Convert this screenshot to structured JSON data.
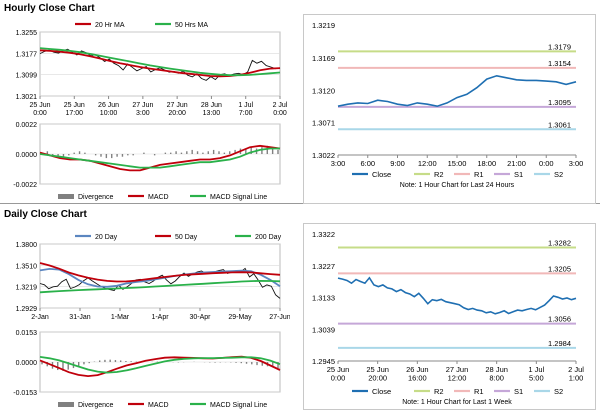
{
  "sections": {
    "hourly_title": "Hourly Close Chart",
    "daily_title": "Daily Close Chart"
  },
  "colors": {
    "price": "#111111",
    "ma_red": "#c0000b",
    "ma_green": "#2ab14a",
    "ma_blue": "#5b86c0",
    "hist": "#808080",
    "close_blue": "#1f6fb2",
    "r2": "#c6dc88",
    "r1": "#f1b8b8",
    "s1": "#c5a7d8",
    "s2": "#a9d7e8",
    "grid": "#d9d9d9"
  },
  "chart_data": [
    {
      "id": "hourly_price",
      "type": "line",
      "title": "Hourly Close Chart",
      "legend": [
        "20 Hr MA",
        "50 Hrs MA"
      ],
      "ylim": [
        1.3021,
        1.3255
      ],
      "yticks": [
        "1.3255",
        "1.3177",
        "1.3099",
        "1.3021"
      ],
      "ytick_values": [
        1.3255,
        1.3177,
        1.3099,
        1.3021
      ],
      "xticks": [
        "25 Jun\n0:00",
        "25 Jun\n17:00",
        "26 Jun\n10:00",
        "27 Jun\n3:00",
        "27 Jun\n20:00",
        "28 Jun\n13:00",
        "1 Jul\n7:00",
        "2 Jul\n0:00"
      ],
      "series": [
        {
          "name": "Close",
          "color": "price",
          "values": [
            1.3176,
            1.3184,
            1.3189,
            1.3181,
            1.3178,
            1.3187,
            1.3192,
            1.3181,
            1.3171,
            1.3186,
            1.3179,
            1.3168,
            1.3172,
            1.3161,
            1.3147,
            1.3156,
            1.3141,
            1.3132,
            1.3116,
            1.3138,
            1.3126,
            1.3113,
            1.3121,
            1.3129,
            1.3109,
            1.3118,
            1.3124,
            1.3116,
            1.3108,
            1.3111,
            1.3104,
            1.3112,
            1.3097,
            1.3091,
            1.3102,
            1.3085,
            1.3078,
            1.3092,
            1.3081,
            1.3099,
            1.3102,
            1.3096,
            1.3101,
            1.3104,
            1.3099,
            1.3109,
            1.3151,
            1.3141,
            1.3148,
            1.3132,
            1.3127,
            1.3121,
            1.3124
          ]
        },
        {
          "name": "20 Hr MA",
          "color": "ma_red",
          "values": [
            1.3188,
            1.3186,
            1.3183,
            1.3179,
            1.3174,
            1.3166,
            1.3158,
            1.3149,
            1.3141,
            1.3134,
            1.3127,
            1.3121,
            1.3116,
            1.3111,
            1.3106,
            1.3102,
            1.3098,
            1.3094,
            1.3093,
            1.3094,
            1.3098,
            1.3106,
            1.3115,
            1.3121,
            1.3123
          ]
        },
        {
          "name": "50 Hrs MA",
          "color": "ma_green",
          "values": [
            1.3196,
            1.3193,
            1.319,
            1.3186,
            1.3181,
            1.3175,
            1.3168,
            1.3161,
            1.3154,
            1.3147,
            1.314,
            1.3133,
            1.3127,
            1.3121,
            1.3116,
            1.3111,
            1.3106,
            1.3102,
            1.3099,
            1.3097,
            1.3097,
            1.3098,
            1.3101,
            1.3104,
            1.3107
          ]
        }
      ]
    },
    {
      "id": "hourly_macd",
      "type": "line",
      "legend": [
        "Divergence",
        "MACD",
        "MACD Signal Line"
      ],
      "ylim": [
        -0.0022,
        0.0022
      ],
      "yticks": [
        "0.0022",
        "0.0000",
        "-0.0022"
      ],
      "ytick_values": [
        0.0022,
        0.0,
        -0.0022
      ],
      "series": [
        {
          "name": "Divergence",
          "color": "hist",
          "values": [
            0.0001,
            0.0002,
            -0.0001,
            -0.0002,
            -0.0002,
            -0.0001,
            0.0001,
            0.0002,
            0.0001,
            0.0,
            -0.0001,
            -0.0002,
            -0.0003,
            -0.0003,
            -0.0002,
            -0.0002,
            -0.0001,
            -0.0001,
            0.0,
            0.0001,
            0.0,
            -0.0001,
            0.0,
            0.0001,
            0.0001,
            0.0002,
            0.0001,
            0.0002,
            0.0003,
            0.0002,
            0.0001,
            0.0002,
            0.0003,
            0.0002,
            0.0001,
            0.0002,
            0.0003,
            0.0004,
            0.0004,
            0.0005,
            0.0004,
            0.0005,
            0.0006,
            0.0005,
            0.0003
          ]
        },
        {
          "name": "MACD",
          "color": "ma_red",
          "values": [
            0.0001,
            -0.0001,
            -0.0003,
            -0.0004,
            -0.0004,
            -0.0005,
            -0.0007,
            -0.0009,
            -0.0011,
            -0.0012,
            -0.0012,
            -0.001,
            -0.0008,
            -0.0007,
            -0.0006,
            -0.0005,
            -0.0004,
            -0.0004,
            -0.0003,
            -0.0001,
            0.0002,
            0.0005,
            0.0006,
            0.0005,
            0.0004
          ]
        },
        {
          "name": "MACD Signal Line",
          "color": "ma_green",
          "values": [
            0.0,
            -0.0001,
            -0.0002,
            -0.0003,
            -0.0004,
            -0.0005,
            -0.0006,
            -0.0007,
            -0.0008,
            -0.0009,
            -0.001,
            -0.001,
            -0.001,
            -0.0009,
            -0.0008,
            -0.0007,
            -0.0006,
            -0.0006,
            -0.0005,
            -0.0004,
            -0.0002,
            0.0001,
            0.0003,
            0.0004,
            0.0004
          ]
        }
      ]
    },
    {
      "id": "hourly_24h",
      "type": "line",
      "note": "Note: 1 Hour Chart for Last 24 Hours",
      "legend": [
        "Close",
        "R2",
        "R1",
        "S1",
        "S2"
      ],
      "ylim": [
        1.3022,
        1.3219
      ],
      "yticks": [
        "1.3219",
        "1.3169",
        "1.3120",
        "1.3071",
        "1.3022"
      ],
      "ytick_values": [
        1.3219,
        1.3169,
        1.312,
        1.3071,
        1.3022
      ],
      "xticks": [
        "3:00",
        "6:00",
        "9:00",
        "12:00",
        "15:00",
        "18:00",
        "21:00",
        "0:00",
        "3:00"
      ],
      "levels": [
        {
          "name": "R2",
          "value": 1.3179,
          "label": "1.3179",
          "color": "r2"
        },
        {
          "name": "R1",
          "value": 1.3154,
          "label": "1.3154",
          "color": "r1"
        },
        {
          "name": "S1",
          "value": 1.3095,
          "label": "1.3095",
          "color": "s1"
        },
        {
          "name": "S2",
          "value": 1.3061,
          "label": "1.3061",
          "color": "s2"
        }
      ],
      "series": [
        {
          "name": "Close",
          "color": "close_blue",
          "values": [
            1.3096,
            1.3099,
            1.3101,
            1.31,
            1.3105,
            1.3103,
            1.3099,
            1.3097,
            1.3101,
            1.3099,
            1.3096,
            1.3101,
            1.3109,
            1.3114,
            1.3124,
            1.3137,
            1.3142,
            1.3139,
            1.3136,
            1.3135,
            1.3135,
            1.3134,
            1.3133,
            1.3129,
            1.3133
          ]
        }
      ]
    },
    {
      "id": "daily_price",
      "type": "line",
      "title": "Daily Close Chart",
      "legend": [
        "20 Day",
        "50 Day",
        "200 Day"
      ],
      "ylim": [
        1.2929,
        1.38
      ],
      "yticks": [
        "1.3800",
        "1.3510",
        "1.3219",
        "1.2929"
      ],
      "ytick_values": [
        1.38,
        1.351,
        1.3219,
        1.2929
      ],
      "xticks": [
        "2-Jan",
        "31-Jan",
        "1-Mar",
        "1-Apr",
        "30-Apr",
        "29-May",
        "27-Jun"
      ],
      "series": [
        {
          "name": "Close",
          "color": "price",
          "values": [
            1.3262,
            1.3245,
            1.3192,
            1.3218,
            1.3226,
            1.3287,
            1.3321,
            1.3194,
            1.3215,
            1.3247,
            1.3301,
            1.3338,
            1.3297,
            1.3259,
            1.3221,
            1.3196,
            1.3179,
            1.3167,
            1.3241,
            1.3184,
            1.3219,
            1.3264,
            1.3312,
            1.3319,
            1.3285,
            1.3262,
            1.3296,
            1.3345,
            1.3376,
            1.3312,
            1.3258,
            1.3296,
            1.3356,
            1.3404,
            1.3361,
            1.3392,
            1.3418,
            1.3432,
            1.3398,
            1.3407,
            1.3421,
            1.3439,
            1.3451,
            1.3398,
            1.3425,
            1.3437,
            1.3419,
            1.3468,
            1.3352,
            1.3395,
            1.3309,
            1.3211,
            1.3243,
            1.3226,
            1.3108,
            1.3059
          ]
        },
        {
          "name": "20 Day",
          "color": "ma_blue",
          "values": [
            1.3441,
            1.3461,
            1.3452,
            1.3391,
            1.3311,
            1.3251,
            1.3222,
            1.3218,
            1.3231,
            1.3264,
            1.3283,
            1.3296,
            1.3318,
            1.3341,
            1.3364,
            1.3382,
            1.3398,
            1.3412,
            1.3419,
            1.3426,
            1.3431,
            1.3437,
            1.3428,
            1.3381,
            1.3312,
            1.3225
          ]
        },
        {
          "name": "50 Day",
          "color": "ma_red",
          "values": [
            1.3542,
            1.3508,
            1.3464,
            1.3412,
            1.3373,
            1.3342,
            1.3316,
            1.3298,
            1.3289,
            1.3291,
            1.3302,
            1.3318,
            1.3334,
            1.3351,
            1.3366,
            1.3379,
            1.3388,
            1.3395,
            1.3402,
            1.3408,
            1.3413,
            1.3416,
            1.3414,
            1.3401,
            1.3391,
            1.3381
          ]
        },
        {
          "name": "200 Day",
          "color": "ma_green",
          "values": [
            1.3142,
            1.3151,
            1.3159,
            1.3166,
            1.3172,
            1.3178,
            1.3183,
            1.3189,
            1.3194,
            1.3201,
            1.3207,
            1.3214,
            1.3222,
            1.3229,
            1.3236,
            1.3244,
            1.3251,
            1.3259,
            1.3266,
            1.3274,
            1.3281,
            1.3289,
            1.3295,
            1.3298,
            1.3296,
            1.3292
          ]
        }
      ]
    },
    {
      "id": "daily_macd",
      "type": "line",
      "legend": [
        "Divergence",
        "MACD",
        "MACD Signal Line"
      ],
      "ylim": [
        -0.0153,
        0.0153
      ],
      "yticks": [
        "0.0153",
        "0.0000",
        "-0.0153"
      ],
      "ytick_values": [
        0.0153,
        0.0,
        -0.0153
      ],
      "series": [
        {
          "name": "Divergence",
          "color": "hist",
          "values": [
            -0.0012,
            -0.0022,
            -0.0034,
            -0.0041,
            -0.0045,
            -0.0039,
            -0.0031,
            -0.0021,
            -0.0012,
            -0.0006,
            0.0002,
            0.0008,
            0.0011,
            0.0012,
            0.001,
            0.0008,
            0.0005,
            0.0004,
            0.0002,
            0.0001,
            0.0,
            0.0001,
            0.0002,
            0.0001,
            0.0,
            -0.0001,
            -0.0002,
            -0.0001,
            0.0,
            0.0001,
            0.0,
            -0.0001,
            -0.0002,
            -0.0003,
            -0.0002,
            -0.0001,
            -0.0002,
            -0.0004,
            -0.0006,
            -0.0009,
            -0.0012,
            -0.0016,
            -0.0019,
            -0.0022,
            -0.0026,
            -0.0031
          ]
        },
        {
          "name": "MACD",
          "color": "ma_red",
          "values": [
            0.0008,
            -0.0011,
            -0.0031,
            -0.0052,
            -0.0066,
            -0.0072,
            -0.0067,
            -0.0052,
            -0.0034,
            -0.0018,
            -0.0006,
            0.0006,
            0.0015,
            0.0022,
            0.0024,
            0.0022,
            0.0021,
            0.0019,
            0.0018,
            0.0021,
            0.0025,
            0.0027,
            0.0021,
            0.0005,
            -0.0018,
            -0.0041
          ]
        },
        {
          "name": "MACD Signal Line",
          "color": "ma_green",
          "values": [
            0.0026,
            0.0019,
            0.0008,
            -0.0007,
            -0.0023,
            -0.0038,
            -0.0049,
            -0.0054,
            -0.0051,
            -0.0043,
            -0.0032,
            -0.002,
            -0.0008,
            0.0003,
            0.0011,
            0.0016,
            0.0019,
            0.002,
            0.002,
            0.0021,
            0.0022,
            0.0024,
            0.0024,
            0.0019,
            0.0007,
            -0.0011
          ]
        }
      ]
    },
    {
      "id": "daily_week",
      "type": "line",
      "note": "Note: 1 Hour Chart for Last 1 Week",
      "legend": [
        "Close",
        "R2",
        "R1",
        "S1",
        "S2"
      ],
      "ylim": [
        1.2945,
        1.3322
      ],
      "yticks": [
        "1.3322",
        "1.3227",
        "1.3133",
        "1.3039",
        "1.2945"
      ],
      "ytick_values": [
        1.3322,
        1.3227,
        1.3133,
        1.3039,
        1.2945
      ],
      "xticks": [
        "25 Jun\n0:00",
        "25 Jun\n20:00",
        "26 Jun\n16:00",
        "27 Jun\n12:00",
        "28 Jun\n8:00",
        "1 Jul\n5:00",
        "2 Jul\n1:00"
      ],
      "levels": [
        {
          "name": "R2",
          "value": 1.3282,
          "label": "1.3282",
          "color": "r2"
        },
        {
          "name": "R1",
          "value": 1.3205,
          "label": "1.3205",
          "color": "r1"
        },
        {
          "name": "S1",
          "value": 1.3056,
          "label": "1.3056",
          "color": "s1"
        },
        {
          "name": "S2",
          "value": 1.2984,
          "label": "1.2984",
          "color": "s2"
        }
      ],
      "series": [
        {
          "name": "Close",
          "color": "close_blue",
          "values": [
            1.3191,
            1.3188,
            1.3184,
            1.3176,
            1.3187,
            1.3181,
            1.3176,
            1.3192,
            1.3171,
            1.3166,
            1.3171,
            1.3162,
            1.3159,
            1.3151,
            1.3157,
            1.3148,
            1.3144,
            1.3136,
            1.3146,
            1.3131,
            1.3115,
            1.3127,
            1.3124,
            1.3128,
            1.3121,
            1.3118,
            1.3115,
            1.3112,
            1.3103,
            1.3098,
            1.3101,
            1.3096,
            1.3094,
            1.3088,
            1.3091,
            1.3085,
            1.3089,
            1.3094,
            1.3086,
            1.3091,
            1.3096,
            1.3094,
            1.3098,
            1.3101,
            1.3097,
            1.3104,
            1.3111,
            1.3124,
            1.3138,
            1.3134,
            1.3129,
            1.3132,
            1.3127,
            1.3131
          ]
        }
      ]
    }
  ]
}
